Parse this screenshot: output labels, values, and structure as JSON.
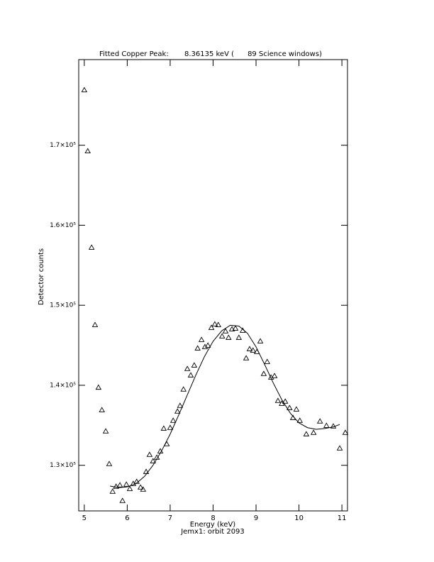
{
  "chart_data": {
    "type": "scatter",
    "title": "Fitted Copper Peak:       8.36135 keV (      89 Science windows)",
    "x_label": "Energy (keV)",
    "subtitle": "Jemx1: orbit 2093",
    "y_label": "Detector counts",
    "xlim": [
      4.87,
      11.13
    ],
    "ylim": [
      124300,
      180700
    ],
    "xticks": [
      5,
      6,
      7,
      8,
      9,
      10,
      11
    ],
    "yticks": [
      {
        "value": 130000,
        "label": "1.3×10⁵"
      },
      {
        "value": 140000,
        "label": "1.4×10⁵"
      },
      {
        "value": 150000,
        "label": "1.5×10⁵"
      },
      {
        "value": 160000,
        "label": "1.6×10⁵"
      },
      {
        "value": 170000,
        "label": "1.7×10⁵"
      }
    ],
    "grid": false,
    "series": [
      {
        "style": "markers",
        "marker": "triangle",
        "color": "#000000",
        "x": [
          5.0,
          5.08,
          5.17,
          5.25,
          5.33,
          5.41,
          5.5,
          5.58,
          5.66,
          5.74,
          5.83,
          5.89,
          5.98,
          6.06,
          6.14,
          6.22,
          6.31,
          6.37,
          6.44,
          6.52,
          6.6,
          6.69,
          6.77,
          6.85,
          6.92,
          7.0,
          7.07,
          7.17,
          7.23,
          7.31,
          7.4,
          7.48,
          7.56,
          7.64,
          7.73,
          7.81,
          7.88,
          7.96,
          8.04,
          8.12,
          8.21,
          8.29,
          8.36,
          8.44,
          8.52,
          8.6,
          8.69,
          8.77,
          8.85,
          8.93,
          9.02,
          9.1,
          9.18,
          9.26,
          9.35,
          9.43,
          9.51,
          9.6,
          9.68,
          9.78,
          9.86,
          9.94,
          10.02,
          10.17,
          10.34,
          10.49,
          10.64,
          10.8,
          10.95,
          11.08
        ],
        "values": [
          176900,
          169270,
          157220,
          147550,
          139730,
          136910,
          134260,
          130180,
          126720,
          127340,
          127520,
          125570,
          127610,
          127070,
          127700,
          127960,
          127250,
          126990,
          129200,
          131330,
          130530,
          130980,
          131770,
          134610,
          132660,
          134700,
          135590,
          136740,
          137450,
          139490,
          142060,
          141260,
          142500,
          144630,
          145690,
          144800,
          144980,
          147200,
          147640,
          147550,
          146130,
          146760,
          145960,
          147020,
          147110,
          145960,
          146840,
          143390,
          144540,
          144360,
          144180,
          145510,
          141440,
          142940,
          140990,
          141170,
          138070,
          137710,
          137980,
          137180,
          135940,
          137000,
          135590,
          133900,
          134080,
          135500,
          134960,
          134880,
          132130,
          134080
        ]
      },
      {
        "style": "line",
        "color": "#000000",
        "x": [
          5.6,
          5.8,
          6.0,
          6.2,
          6.4,
          6.6,
          6.8,
          7.0,
          7.2,
          7.4,
          7.6,
          7.8,
          8.0,
          8.2,
          8.4,
          8.6,
          8.8,
          9.0,
          9.2,
          9.4,
          9.6,
          9.8,
          10.0,
          10.2,
          10.4,
          10.6,
          10.8,
          10.95
        ],
        "values": [
          127400,
          127200,
          127300,
          127700,
          128600,
          130000,
          131800,
          133900,
          136300,
          138800,
          141300,
          143600,
          145500,
          146800,
          147500,
          147400,
          146500,
          144800,
          142600,
          140300,
          138200,
          136500,
          135300,
          134700,
          134500,
          134600,
          134800,
          135100
        ]
      }
    ]
  }
}
